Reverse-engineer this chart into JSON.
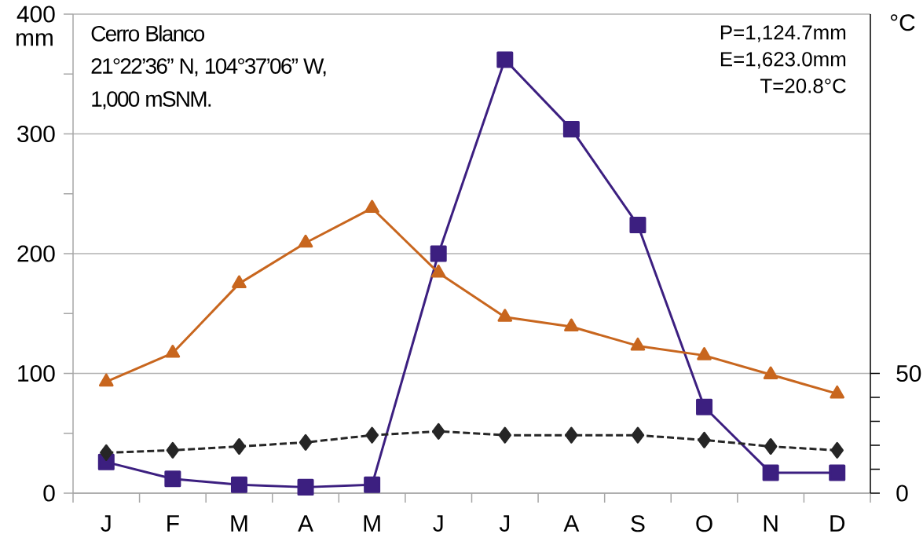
{
  "chart_data": {
    "type": "line",
    "categories": [
      "J",
      "F",
      "M",
      "A",
      "M",
      "J",
      "J",
      "A",
      "S",
      "O",
      "N",
      "D"
    ],
    "series": [
      {
        "color": "#3c1f80",
        "marker": "square",
        "line_style": "solid",
        "values": [
          26,
          12,
          7,
          5,
          7,
          200,
          362,
          304,
          224,
          72,
          17,
          17
        ]
      },
      {
        "color": "#c8661e",
        "marker": "triangle",
        "line_style": "solid",
        "values": [
          93,
          117,
          175,
          209,
          238,
          184,
          147,
          139,
          123,
          115,
          99,
          83
        ]
      },
      {
        "color": "#262626",
        "marker": "diamond",
        "line_style": "dashed",
        "axis": "y2",
        "values": [
          16.9,
          17.9,
          19.5,
          21.2,
          24.2,
          25.8,
          24.2,
          24.2,
          24.2,
          22.2,
          19.5,
          17.9
        ]
      }
    ],
    "ylabel": "mm",
    "y2label": "°C",
    "ylim": [
      0,
      400
    ],
    "yticks": [
      0,
      {
        "value": 50,
        "label": null
      },
      100,
      {
        "value": 150,
        "label": null
      },
      200,
      {
        "value": 250,
        "label": null
      },
      300,
      {
        "value": 350,
        "label": null
      },
      400
    ],
    "y2lim": [
      0,
      200
    ],
    "y2ticks": [
      0,
      {
        "value": 10,
        "label": null
      },
      {
        "value": 20,
        "label": null
      },
      {
        "value": 30,
        "label": null
      },
      {
        "value": 40,
        "label": null
      },
      50
    ],
    "grid": "y",
    "annotations": [
      "Cerro Blanco",
      "21°22’36” N, 104°37’06” W,",
      "1,000 mSNM.",
      "P=1,124.7mm",
      "E=1,623.0mm",
      "T=20.8°C"
    ]
  }
}
